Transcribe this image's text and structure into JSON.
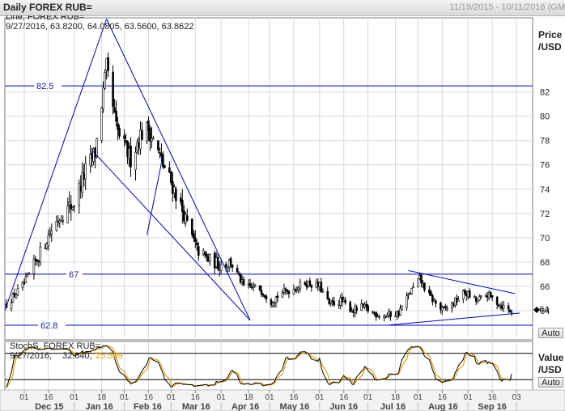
{
  "window": {
    "title": "Daily FOREX RUB=",
    "date_range": "11/19/2015 - 10/11/2016 (GM"
  },
  "price_panel": {
    "legend_line1": "Line; FOREX RUB=",
    "legend_line2": "9/27/2016, 63.8200, 64.0805, 63.5600, 63.8622",
    "axis_title": "Price\n/USD",
    "axis_title_line1": "Price",
    "axis_title_line2": "/USD",
    "auto_label": "Auto",
    "current_marker": "64"
  },
  "stoch_panel": {
    "legend_line1": "StochS, FOREX RUB=",
    "legend_date": "9/27/2016,",
    "legend_k": "32.840,",
    "legend_d": "25.569",
    "axis_title_line1": "Value",
    "axis_title_line2": "/USD",
    "auto_label": "Auto"
  },
  "colors": {
    "line": "#0000cc",
    "candles": "#000000",
    "stoch_k": "#000000",
    "stoch_d": "#e8a000",
    "grid": "#d9d9d9"
  },
  "chart_data": [
    {
      "type": "ohlc",
      "x_ticks": [
        "01",
        "16",
        "01",
        "18",
        "01",
        "16",
        "01",
        "16",
        "01",
        "18",
        "01",
        "16",
        "01",
        "16",
        "01",
        "18",
        "01",
        "16",
        "01",
        "16",
        "03"
      ],
      "month_labels": [
        "Dec 15",
        "Jan 16",
        "Feb 16",
        "Mar 16",
        "Apr 16",
        "May 16",
        "Jun 16",
        "Jul 16",
        "Aug 16",
        "Sep 16"
      ],
      "xlim": [
        "2015-11-19",
        "2016-10-11"
      ],
      "ylim": [
        61.6,
        88.1
      ],
      "y_ticks": [
        64,
        66,
        68,
        70,
        72,
        74,
        76,
        78,
        80,
        82
      ],
      "anchors": [
        [
          "2015-11-20",
          64.5
        ],
        [
          "2015-12-01",
          66.2
        ],
        [
          "2015-12-10",
          68.5
        ],
        [
          "2015-12-20",
          71.2
        ],
        [
          "2016-01-01",
          72.9
        ],
        [
          "2016-01-08",
          75.5
        ],
        [
          "2016-01-14",
          77.0
        ],
        [
          "2016-01-21",
          84.0
        ],
        [
          "2016-01-27",
          79.0
        ],
        [
          "2016-02-01",
          77.5
        ],
        [
          "2016-02-05",
          76.5
        ],
        [
          "2016-02-11",
          78.5
        ],
        [
          "2016-02-16",
          79.0
        ],
        [
          "2016-02-25",
          76.0
        ],
        [
          "2016-03-03",
          74.0
        ],
        [
          "2016-03-10",
          71.5
        ],
        [
          "2016-03-17",
          69.0
        ],
        [
          "2016-03-24",
          68.2
        ],
        [
          "2016-03-31",
          67.8
        ],
        [
          "2016-04-07",
          68.0
        ],
        [
          "2016-04-15",
          66.0
        ],
        [
          "2016-04-25",
          65.8
        ],
        [
          "2016-05-02",
          64.8
        ],
        [
          "2016-05-09",
          65.5
        ],
        [
          "2016-05-16",
          65.8
        ],
        [
          "2016-05-23",
          66.3
        ],
        [
          "2016-06-01",
          66.0
        ],
        [
          "2016-06-07",
          64.5
        ],
        [
          "2016-06-14",
          64.8
        ],
        [
          "2016-06-22",
          64.0
        ],
        [
          "2016-06-28",
          64.3
        ],
        [
          "2016-07-04",
          63.8
        ],
        [
          "2016-07-11",
          63.6
        ],
        [
          "2016-07-20",
          63.8
        ],
        [
          "2016-07-27",
          65.5
        ],
        [
          "2016-08-02",
          66.6
        ],
        [
          "2016-08-08",
          65.2
        ],
        [
          "2016-08-16",
          64.0
        ],
        [
          "2016-08-22",
          64.5
        ],
        [
          "2016-08-30",
          65.5
        ],
        [
          "2016-09-06",
          64.8
        ],
        [
          "2016-09-13",
          65.3
        ],
        [
          "2016-09-21",
          64.5
        ],
        [
          "2016-09-28",
          63.9
        ]
      ],
      "horizontal_levels": [
        {
          "value": 82.5,
          "label": "82.5"
        },
        {
          "value": 67,
          "label": "67"
        },
        {
          "value": 62.8,
          "label": "62.8"
        }
      ],
      "trendlines": [
        {
          "from": [
            "2015-11-19",
            64.0
          ],
          "to": [
            "2016-01-21",
            88.0
          ]
        },
        {
          "from": [
            "2016-01-21",
            88.0
          ],
          "to": [
            "2016-04-19",
            63.2
          ]
        },
        {
          "from": [
            "2016-01-12",
            77.2
          ],
          "to": [
            "2016-04-19",
            63.2
          ]
        },
        {
          "from": [
            "2016-02-15",
            70.2
          ],
          "to": [
            "2016-02-25",
            76.8
          ]
        },
        {
          "from": [
            "2016-07-13",
            62.8
          ],
          "to": [
            "2016-10-03",
            63.8
          ]
        },
        {
          "from": [
            "2016-07-26",
            67.3
          ],
          "to": [
            "2016-09-30",
            65.4
          ]
        }
      ]
    },
    {
      "type": "line",
      "series": [
        {
          "name": "StochS",
          "color": "#000000"
        },
        {
          "name": "",
          "color": "#e8a000"
        }
      ],
      "last_values": [
        32.84,
        25.569
      ],
      "ylim": [
        0,
        100
      ],
      "levels": [
        20,
        80
      ]
    }
  ]
}
